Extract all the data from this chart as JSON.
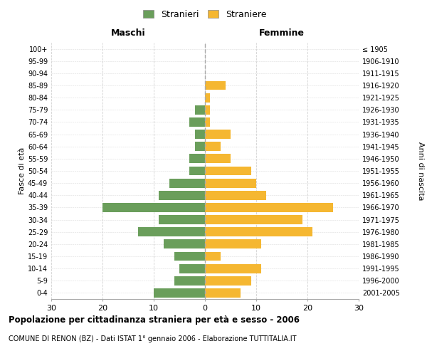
{
  "age_groups": [
    "0-4",
    "5-9",
    "10-14",
    "15-19",
    "20-24",
    "25-29",
    "30-34",
    "35-39",
    "40-44",
    "45-49",
    "50-54",
    "55-59",
    "60-64",
    "65-69",
    "70-74",
    "75-79",
    "80-84",
    "85-89",
    "90-94",
    "95-99",
    "100+"
  ],
  "birth_years": [
    "2001-2005",
    "1996-2000",
    "1991-1995",
    "1986-1990",
    "1981-1985",
    "1976-1980",
    "1971-1975",
    "1966-1970",
    "1961-1965",
    "1956-1960",
    "1951-1955",
    "1946-1950",
    "1941-1945",
    "1936-1940",
    "1931-1935",
    "1926-1930",
    "1921-1925",
    "1916-1920",
    "1911-1915",
    "1906-1910",
    "≤ 1905"
  ],
  "males": [
    10,
    6,
    5,
    6,
    8,
    13,
    9,
    20,
    9,
    7,
    3,
    3,
    2,
    2,
    3,
    2,
    0,
    0,
    0,
    0,
    0
  ],
  "females": [
    7,
    9,
    11,
    3,
    11,
    21,
    19,
    25,
    12,
    10,
    9,
    5,
    3,
    5,
    1,
    1,
    1,
    4,
    0,
    0,
    0
  ],
  "color_male": "#6a9e5b",
  "color_female": "#f5b731",
  "title": "Popolazione per cittadinanza straniera per età e sesso - 2006",
  "subtitle": "COMUNE DI RENON (BZ) - Dati ISTAT 1° gennaio 2006 - Elaborazione TUTTITALIA.IT",
  "xlabel_left": "Maschi",
  "xlabel_right": "Femmine",
  "ylabel_left": "Fasce di età",
  "ylabel_right": "Anni di nascita",
  "legend_male": "Stranieri",
  "legend_female": "Straniere",
  "xlim": 30,
  "background_color": "#ffffff",
  "grid_color": "#cccccc"
}
